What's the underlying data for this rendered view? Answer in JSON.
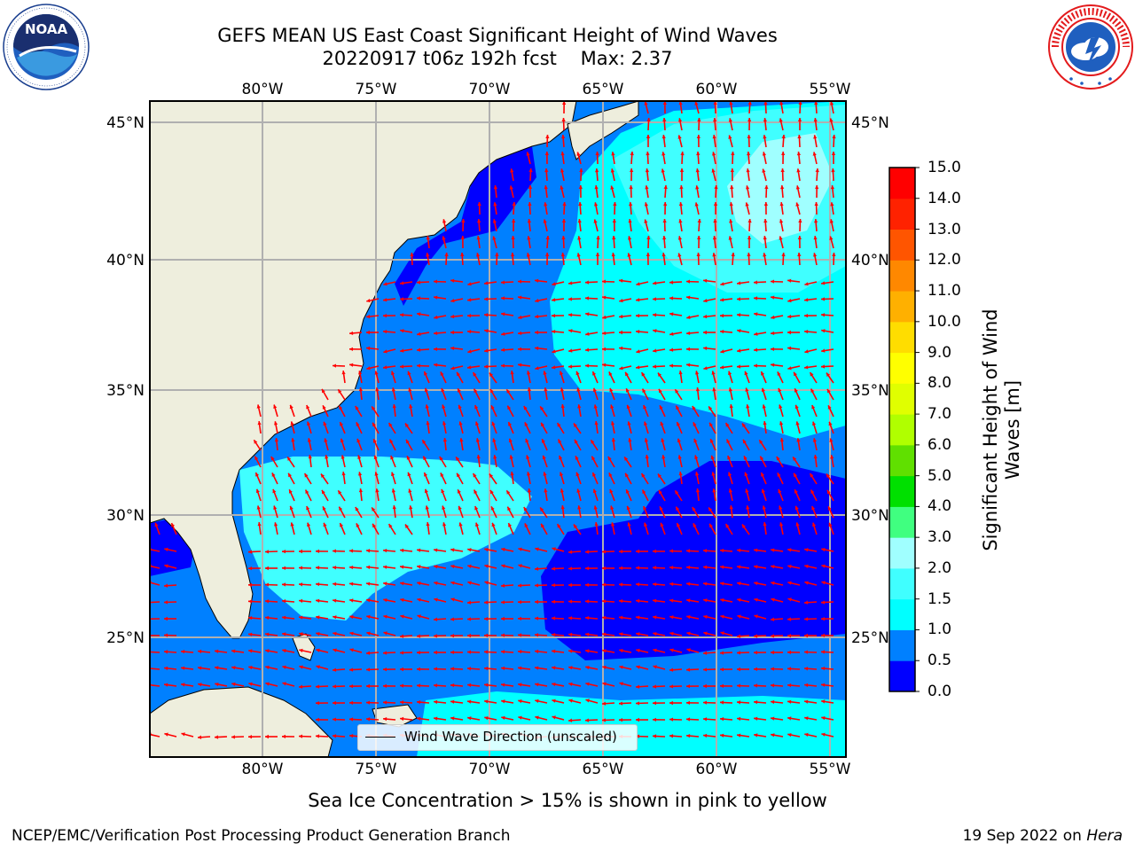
{
  "title": {
    "line1": "GEFS MEAN US East Coast Significant Height of Wind Waves",
    "line2": "20220917 t06z 192h fcst    Max: 2.37"
  },
  "logos": {
    "left": {
      "name": "noaa-logo",
      "text": "NOAA",
      "ring_text": "NATIONAL OCEANIC AND ATMOSPHERIC ADMINISTRATION · U.S. DEPARTMENT OF COMMERCE"
    },
    "right": {
      "name": "nws-logo",
      "ring_text": "NATIONAL WEATHER SERVICE"
    }
  },
  "map": {
    "lon_labels": [
      "80°W",
      "75°W",
      "70°W",
      "65°W",
      "60°W",
      "55°W"
    ],
    "lat_labels": [
      "45°N",
      "40°N",
      "35°N",
      "30°N",
      "25°N"
    ],
    "extent": {
      "lon_min": -85,
      "lon_max": -54.5,
      "lat_min": 20,
      "lat_max": 45.8
    },
    "gridlines": true,
    "arrow_color": "#ff0000",
    "land_color": "#eeeedd",
    "legend_label": "Wind Wave Direction (unscaled)"
  },
  "colorbar": {
    "ticks": [
      "0.0",
      "0.5",
      "1.0",
      "1.5",
      "2.0",
      "3.0",
      "4.0",
      "5.0",
      "6.0",
      "7.0",
      "8.0",
      "9.0",
      "10.0",
      "11.0",
      "12.0",
      "13.0",
      "14.0",
      "15.0"
    ],
    "colors": [
      "#0000ff",
      "#0080ff",
      "#00ffff",
      "#40ffff",
      "#a0ffff",
      "#40ff80",
      "#00e000",
      "#60e000",
      "#b0ff00",
      "#e0ff00",
      "#ffff00",
      "#ffdd00",
      "#ffb000",
      "#ff8800",
      "#ff5500",
      "#ff2200",
      "#ff0000"
    ],
    "label": "Significant Height of Wind Waves [m]",
    "label_line1": "Significant Height of Wind",
    "label_line2": "Waves [m]"
  },
  "footer": {
    "note": "Sea Ice Concentration > 15% is shown in pink to yellow",
    "credit": "NCEP/EMC/Verification Post Processing Product Generation Branch",
    "date": "19 Sep 2022 on",
    "machine": "Hera"
  }
}
